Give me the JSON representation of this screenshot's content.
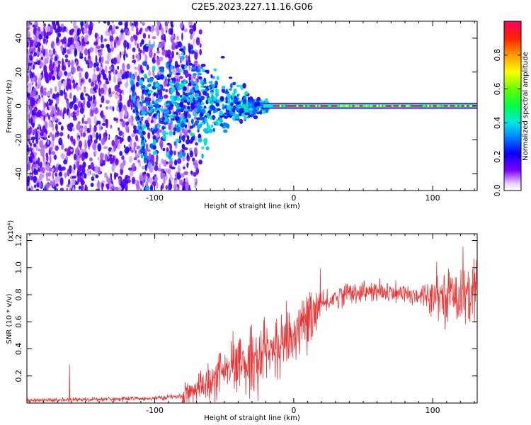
{
  "title": "C2E5.2023.227.11.16.G06",
  "chart_data": [
    {
      "type": "heatmap",
      "name": "spectrogram",
      "xlabel": "Height of straight line (km)",
      "ylabel": "Frequency (Hz)",
      "xlim": [
        -192,
        132
      ],
      "ylim": [
        -50,
        50
      ],
      "x_ticks": [
        -100,
        0,
        100
      ],
      "x_tick_labels": [
        "-100",
        "0",
        "100"
      ],
      "y_ticks": [
        -40,
        -20,
        0,
        20,
        40
      ],
      "y_tick_labels": [
        "-40",
        "-20",
        "0",
        "20",
        "40"
      ],
      "colorbar": {
        "label": "Normalized spectral amplitude",
        "range": [
          0,
          1
        ],
        "ticks": [
          0.0,
          0.2,
          0.4,
          0.6,
          0.8
        ],
        "tick_labels": [
          "0.0",
          "0.2",
          "0.4",
          "0.6",
          "0.8"
        ]
      },
      "grid": false
    },
    {
      "type": "line",
      "name": "snr",
      "xlabel": "Height of straight line (km)",
      "ylabel": "SNR (10 * v/v)",
      "y_multiplier_label": "(x10⁴)",
      "xlim": [
        -192,
        132
      ],
      "ylim": [
        0,
        1.25
      ],
      "x_ticks": [
        -100,
        0,
        100
      ],
      "x_tick_labels": [
        "-100",
        "0",
        "100"
      ],
      "y_ticks": [
        0.2,
        0.4,
        0.6,
        0.8,
        1.0,
        1.2
      ],
      "y_tick_labels": [
        "0.2",
        "0.4",
        "0.6",
        "0.8",
        "1.0",
        "1.2"
      ],
      "series_color": "#ee3333",
      "trend": {
        "x": [
          -192,
          -160,
          -130,
          -100,
          -80,
          -70,
          -60,
          -50,
          -40,
          -30,
          -20,
          -10,
          0,
          10,
          20,
          30,
          40,
          60,
          80,
          100,
          115,
          132
        ],
        "y": [
          0.02,
          0.025,
          0.03,
          0.035,
          0.05,
          0.1,
          0.15,
          0.22,
          0.27,
          0.33,
          0.38,
          0.42,
          0.5,
          0.62,
          0.72,
          0.78,
          0.82,
          0.82,
          0.8,
          0.8,
          0.8,
          0.82
        ]
      },
      "grid": false
    }
  ]
}
